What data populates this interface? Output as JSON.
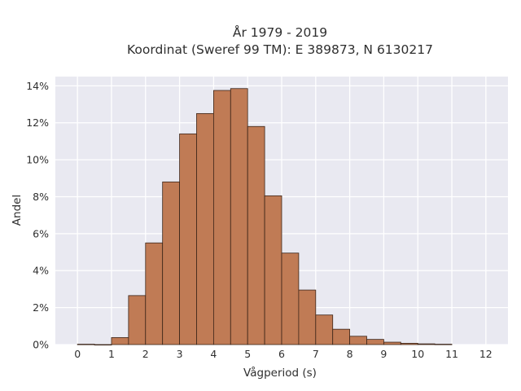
{
  "chart_data": {
    "type": "bar",
    "title_lines": [
      "År 1979 - 2019",
      "Koordinat (Sweref 99 TM): E 389873, N 6130217"
    ],
    "xlabel": "Vågperiod (s)",
    "ylabel": "Andel",
    "xlim": [
      -0.65,
      12.65
    ],
    "ylim": [
      0,
      14.5
    ],
    "x_ticks": [
      0,
      1,
      2,
      3,
      4,
      5,
      6,
      7,
      8,
      9,
      10,
      11,
      12
    ],
    "x_tick_labels": [
      "0",
      "1",
      "2",
      "3",
      "4",
      "5",
      "6",
      "7",
      "8",
      "9",
      "10",
      "11",
      "12"
    ],
    "y_ticks": [
      0,
      2,
      4,
      6,
      8,
      10,
      12,
      14
    ],
    "y_tick_labels": [
      "0%",
      "2%",
      "4%",
      "6%",
      "8%",
      "10%",
      "12%",
      "14%"
    ],
    "bin_width": 0.5,
    "bin_starts": [
      0,
      0.5,
      1,
      1.5,
      2,
      2.5,
      3,
      3.5,
      4,
      4.5,
      5,
      5.5,
      6,
      6.5,
      7,
      7.5,
      8,
      8.5,
      9,
      9.5,
      10,
      10.5
    ],
    "values": [
      0.02,
      0,
      0.38,
      2.65,
      5.5,
      8.8,
      11.4,
      12.5,
      13.75,
      13.85,
      11.8,
      8.05,
      4.95,
      2.95,
      1.6,
      0.83,
      0.45,
      0.28,
      0.13,
      0.07,
      0.04,
      0.02
    ],
    "units": "%",
    "grid": true,
    "colors": {
      "bar_fill": "#c07b55",
      "bar_edge": "#3a2418",
      "plot_bg": "#e9e9f1",
      "grid": "#ffffff"
    }
  }
}
